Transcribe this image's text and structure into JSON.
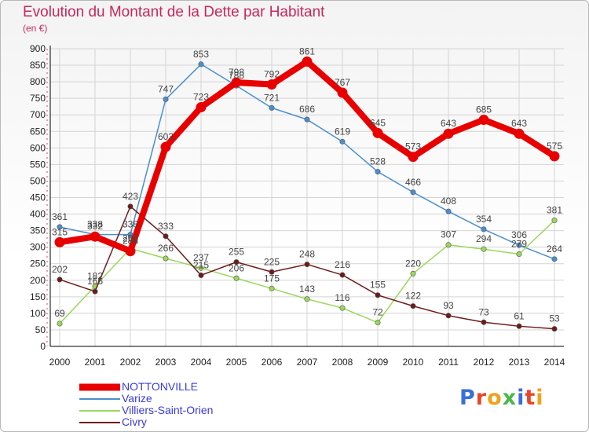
{
  "chart_data": {
    "type": "line",
    "title": "Evolution du Montant de la Dette par Habitant",
    "subtitle": "(en €)",
    "xlabel": "",
    "ylabel": "",
    "ylim": [
      0,
      900
    ],
    "yticks": [
      "0",
      "50",
      "100",
      "150",
      "200",
      "250",
      "300",
      "350",
      "400",
      "450",
      "500",
      "550",
      "600",
      "650",
      "700",
      "750",
      "800",
      "850",
      "900"
    ],
    "categories": [
      "2000",
      "2001",
      "2002",
      "2003",
      "2004",
      "2005",
      "2006",
      "2007",
      "2008",
      "2009",
      "2010",
      "2011",
      "2012",
      "2013",
      "2014"
    ],
    "grid": true,
    "legend": "bottom-left",
    "series": [
      {
        "name": "NOTTONVILLE",
        "color": "#e80000",
        "values": [
          315,
          332,
          288,
          603,
          723,
          798,
          792,
          861,
          767,
          645,
          573,
          643,
          685,
          643,
          575
        ],
        "labels": [
          "315",
          "332",
          "288",
          "603",
          "723",
          "798",
          "792",
          "861",
          "767",
          "645",
          "573",
          "643",
          "685",
          "643",
          "575"
        ]
      },
      {
        "name": "Varize",
        "color": "#4a8fcf",
        "values": [
          361,
          338,
          338,
          747,
          853,
          788,
          721,
          686,
          619,
          528,
          466,
          408,
          354,
          306,
          264
        ],
        "labels": [
          "361",
          "338",
          "338",
          "747",
          "853",
          "788",
          "721",
          "686",
          "619",
          "528",
          "466",
          "408",
          "354",
          "306",
          "264"
        ]
      },
      {
        "name": "Villiers-Saint-Orien",
        "color": "#9ad85a",
        "values": [
          69,
          182,
          296,
          266,
          237,
          206,
          175,
          143,
          116,
          72,
          220,
          307,
          294,
          279,
          381
        ],
        "labels": [
          "69",
          "182",
          "296",
          "266",
          "237",
          "206",
          "175",
          "143",
          "116",
          "72",
          "220",
          "307",
          "294",
          "279",
          "381"
        ]
      },
      {
        "name": "Civry",
        "color": "#6e1b1b",
        "values": [
          202,
          166,
          423,
          333,
          215,
          255,
          225,
          248,
          216,
          155,
          122,
          93,
          73,
          61,
          53
        ],
        "labels": [
          "202",
          "166",
          "423",
          "333",
          "215",
          "255",
          "225",
          "248",
          "216",
          "155",
          "122",
          "93",
          "73",
          "61",
          "53"
        ]
      }
    ]
  },
  "logo": {
    "text": "Proxiti",
    "letter_colors": [
      "#3a6fd8",
      "#e8462a",
      "#f0a21e",
      "#48b848",
      "#3a6fd8",
      "#e8462a",
      "#f0a21e"
    ]
  }
}
